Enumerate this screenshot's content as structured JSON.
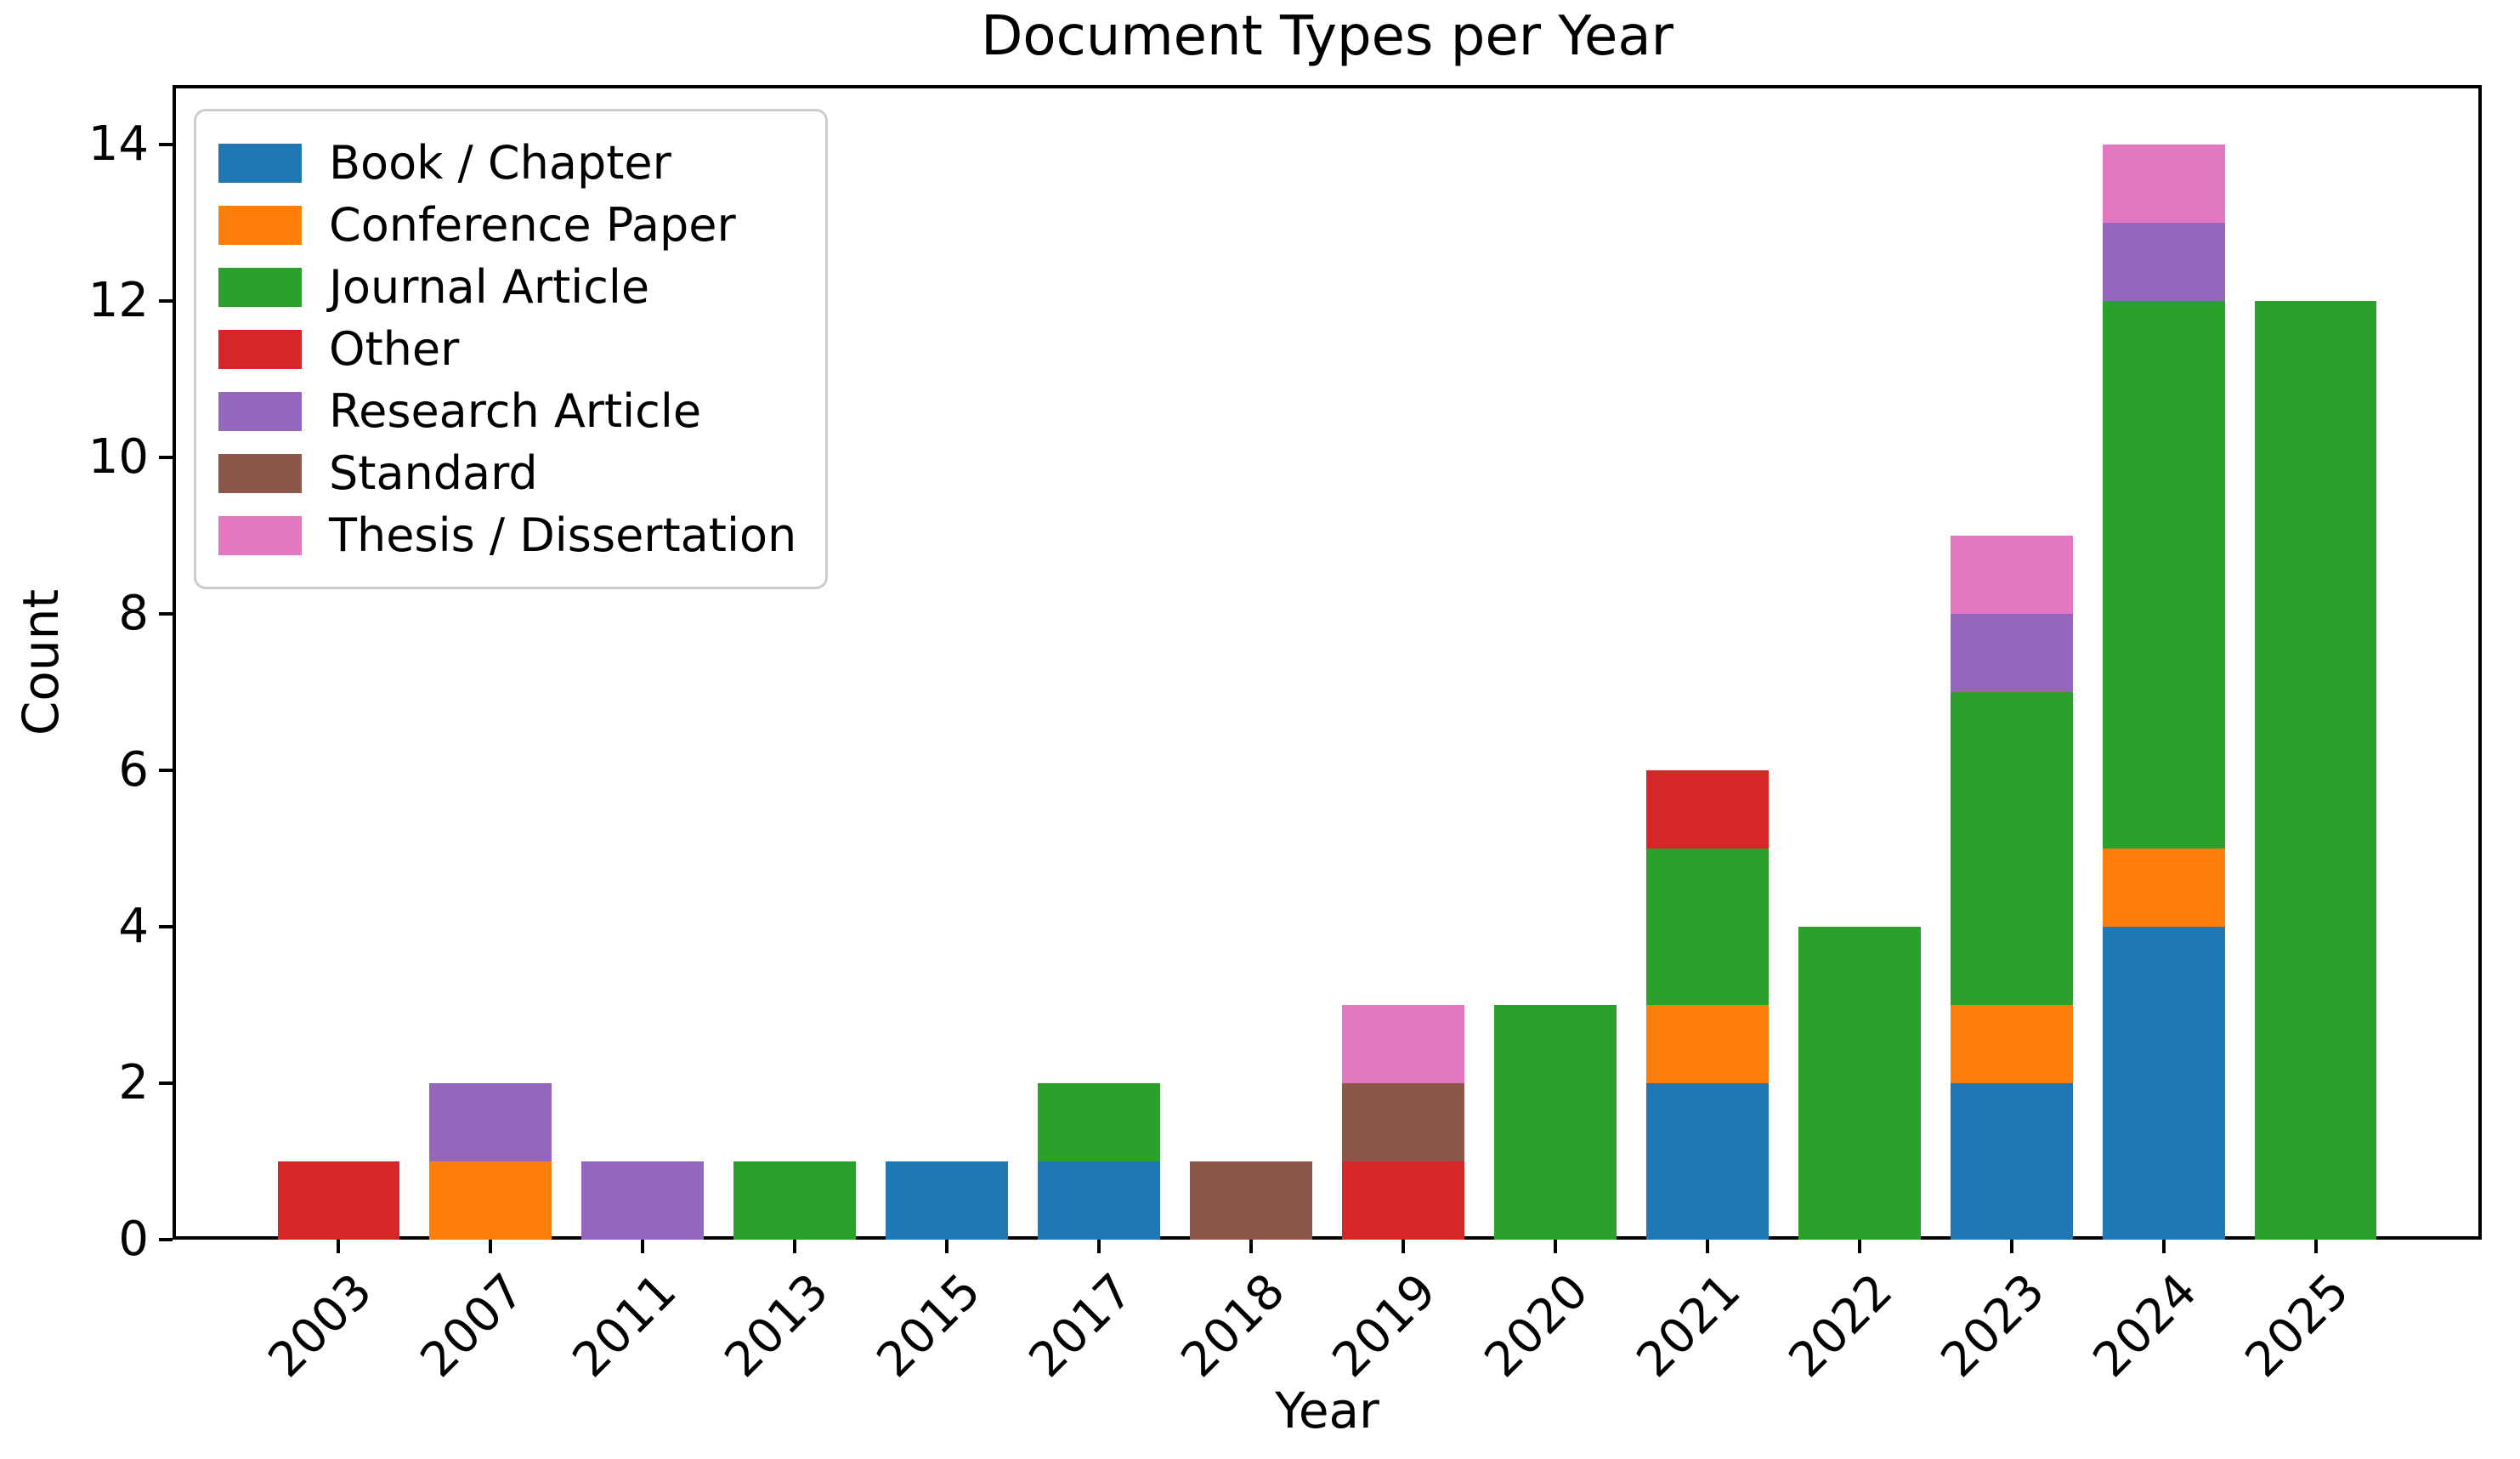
{
  "title": "Document Types per Year",
  "chart_data": {
    "type": "bar",
    "stacked": true,
    "title": "Document Types per Year",
    "xlabel": "Year",
    "ylabel": "Count",
    "categories": [
      "2003",
      "2007",
      "2011",
      "2013",
      "2015",
      "2017",
      "2018",
      "2019",
      "2020",
      "2021",
      "2022",
      "2023",
      "2024",
      "2025"
    ],
    "series": [
      {
        "name": "Book / Chapter",
        "color": "#1f77b4",
        "values": [
          0,
          0,
          0,
          0,
          1,
          1,
          0,
          0,
          0,
          2,
          0,
          2,
          4,
          0
        ]
      },
      {
        "name": "Conference Paper",
        "color": "#ff7f0e",
        "values": [
          0,
          1,
          0,
          0,
          0,
          0,
          0,
          0,
          0,
          1,
          0,
          1,
          1,
          0
        ]
      },
      {
        "name": "Journal Article",
        "color": "#2ca02c",
        "values": [
          0,
          0,
          0,
          1,
          0,
          1,
          0,
          0,
          3,
          2,
          4,
          4,
          7,
          12
        ]
      },
      {
        "name": "Other",
        "color": "#d62728",
        "values": [
          1,
          0,
          0,
          0,
          0,
          0,
          0,
          1,
          0,
          1,
          0,
          0,
          0,
          0
        ]
      },
      {
        "name": "Research Article",
        "color": "#9467bd",
        "values": [
          0,
          1,
          1,
          0,
          0,
          0,
          0,
          0,
          0,
          0,
          0,
          1,
          1,
          0
        ]
      },
      {
        "name": "Standard",
        "color": "#8c564b",
        "values": [
          0,
          0,
          0,
          0,
          0,
          0,
          1,
          1,
          0,
          0,
          0,
          0,
          0,
          0
        ]
      },
      {
        "name": "Thesis / Dissertation",
        "color": "#e377c2",
        "values": [
          0,
          0,
          0,
          0,
          0,
          0,
          0,
          1,
          0,
          0,
          0,
          1,
          1,
          0
        ]
      }
    ],
    "totals_per_category": [
      1,
      2,
      1,
      1,
      1,
      2,
      1,
      3,
      3,
      6,
      4,
      9,
      14,
      12
    ],
    "yticks": [
      0,
      2,
      4,
      6,
      8,
      10,
      12,
      14
    ],
    "ylim": [
      0,
      14.76
    ],
    "grid": false,
    "legend_position": "upper left",
    "bar_width_frac": 0.8,
    "axis_color": "#000000",
    "text_color": "#000000",
    "legend_border_color": "#cccccc",
    "background_color": "#ffffff"
  }
}
